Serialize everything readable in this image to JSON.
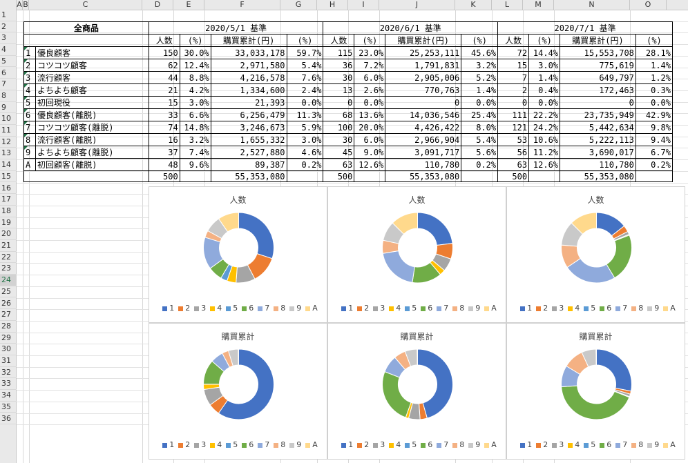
{
  "columns": [
    "A",
    "B",
    "C",
    "D",
    "E",
    "F",
    "G",
    "H",
    "I",
    "J",
    "K",
    "L",
    "M",
    "N",
    "O"
  ],
  "rows": [
    "1",
    "2",
    "3",
    "4",
    "5",
    "6",
    "7",
    "8",
    "9",
    "10",
    "11",
    "12",
    "13",
    "14",
    "15",
    "16",
    "17",
    "18",
    "19",
    "20",
    "21",
    "22",
    "23",
    "24",
    "25",
    "26",
    "27",
    "28",
    "29",
    "30",
    "31",
    "32",
    "33",
    "34",
    "35",
    "36"
  ],
  "table": {
    "corner_label": "全商品",
    "periods": [
      "2020/5/1 基準",
      "2020/6/1 基準",
      "2020/7/1 基準"
    ],
    "subheaders": [
      "人数",
      "(%)",
      "購買累計(円)",
      "(%)"
    ],
    "segments": [
      {
        "code": "1",
        "name": "優良顧客",
        "p": [
          [
            "150",
            "30.0%",
            "33,033,178",
            "59.7%"
          ],
          [
            "115",
            "23.0%",
            "25,253,111",
            "45.6%"
          ],
          [
            "72",
            "14.4%",
            "15,553,708",
            "28.1%"
          ]
        ]
      },
      {
        "code": "2",
        "name": "コツコツ顧客",
        "p": [
          [
            "62",
            "12.4%",
            "2,971,580",
            "5.4%"
          ],
          [
            "36",
            "7.2%",
            "1,791,831",
            "3.2%"
          ],
          [
            "15",
            "3.0%",
            "775,619",
            "1.4%"
          ]
        ]
      },
      {
        "code": "3",
        "name": "流行顧客",
        "p": [
          [
            "44",
            "8.8%",
            "4,216,578",
            "7.6%"
          ],
          [
            "30",
            "6.0%",
            "2,905,006",
            "5.2%"
          ],
          [
            "7",
            "1.4%",
            "649,797",
            "1.2%"
          ]
        ]
      },
      {
        "code": "4",
        "name": "よちよち顧客",
        "p": [
          [
            "21",
            "4.2%",
            "1,334,600",
            "2.4%"
          ],
          [
            "13",
            "2.6%",
            "770,763",
            "1.4%"
          ],
          [
            "2",
            "0.4%",
            "172,463",
            "0.3%"
          ]
        ]
      },
      {
        "code": "5",
        "name": "初回現役",
        "p": [
          [
            "15",
            "3.0%",
            "21,393",
            "0.0%"
          ],
          [
            "0",
            "0.0%",
            "0",
            "0.0%"
          ],
          [
            "0",
            "0.0%",
            "0",
            "0.0%"
          ]
        ]
      },
      {
        "code": "6",
        "name": "優良顧客(離脱)",
        "p": [
          [
            "33",
            "6.6%",
            "6,256,479",
            "11.3%"
          ],
          [
            "68",
            "13.6%",
            "14,036,546",
            "25.4%"
          ],
          [
            "111",
            "22.2%",
            "23,735,949",
            "42.9%"
          ]
        ]
      },
      {
        "code": "7",
        "name": "コツコツ顧客(離脱)",
        "p": [
          [
            "74",
            "14.8%",
            "3,246,673",
            "5.9%"
          ],
          [
            "100",
            "20.0%",
            "4,426,422",
            "8.0%"
          ],
          [
            "121",
            "24.2%",
            "5,442,634",
            "9.8%"
          ]
        ]
      },
      {
        "code": "8",
        "name": "流行顧客(離脱)",
        "p": [
          [
            "16",
            "3.2%",
            "1,655,332",
            "3.0%"
          ],
          [
            "30",
            "6.0%",
            "2,966,904",
            "5.4%"
          ],
          [
            "53",
            "10.6%",
            "5,222,113",
            "9.4%"
          ]
        ]
      },
      {
        "code": "9",
        "name": "よちよち顧客(離脱)",
        "p": [
          [
            "37",
            "7.4%",
            "2,527,880",
            "4.6%"
          ],
          [
            "45",
            "9.0%",
            "3,091,717",
            "5.6%"
          ],
          [
            "56",
            "11.2%",
            "3,690,017",
            "6.7%"
          ]
        ]
      },
      {
        "code": "A",
        "name": "初回顧客(離脱)",
        "p": [
          [
            "48",
            "9.6%",
            "89,387",
            "0.2%"
          ],
          [
            "63",
            "12.6%",
            "110,780",
            "0.2%"
          ],
          [
            "63",
            "12.6%",
            "110,780",
            "0.2%"
          ]
        ]
      }
    ],
    "totals": [
      [
        "500",
        "55,353,080"
      ],
      [
        "500",
        "55,353,080"
      ],
      [
        "500",
        "55,353,080"
      ]
    ]
  },
  "colors": [
    "#4472c4",
    "#ed7d31",
    "#a5a5a5",
    "#ffc000",
    "#5b9bd5",
    "#70ad47",
    "#8faadc",
    "#f4b183",
    "#c9c9c9",
    "#ffd98c"
  ],
  "legend_labels": [
    "1",
    "2",
    "3",
    "4",
    "5",
    "6",
    "7",
    "8",
    "9",
    "A"
  ],
  "chart_data": [
    {
      "type": "pie",
      "title": "人数",
      "categories": [
        "1",
        "2",
        "3",
        "4",
        "5",
        "6",
        "7",
        "8",
        "9",
        "A"
      ],
      "values": [
        150,
        62,
        44,
        21,
        15,
        33,
        74,
        16,
        37,
        48
      ]
    },
    {
      "type": "pie",
      "title": "人数",
      "categories": [
        "1",
        "2",
        "3",
        "4",
        "5",
        "6",
        "7",
        "8",
        "9",
        "A"
      ],
      "values": [
        115,
        36,
        30,
        13,
        0,
        68,
        100,
        30,
        45,
        63
      ]
    },
    {
      "type": "pie",
      "title": "人数",
      "categories": [
        "1",
        "2",
        "3",
        "4",
        "5",
        "6",
        "7",
        "8",
        "9",
        "A"
      ],
      "values": [
        72,
        15,
        7,
        2,
        0,
        111,
        121,
        53,
        56,
        63
      ]
    },
    {
      "type": "pie",
      "title": "購買累計",
      "categories": [
        "1",
        "2",
        "3",
        "4",
        "5",
        "6",
        "7",
        "8",
        "9",
        "A"
      ],
      "values": [
        33033178,
        2971580,
        4216578,
        1334600,
        21393,
        6256479,
        3246673,
        1655332,
        2527880,
        89387
      ]
    },
    {
      "type": "pie",
      "title": "購買累計",
      "categories": [
        "1",
        "2",
        "3",
        "4",
        "5",
        "6",
        "7",
        "8",
        "9",
        "A"
      ],
      "values": [
        25253111,
        1791831,
        2905006,
        770763,
        0,
        14036546,
        4426422,
        2966904,
        3091717,
        110780
      ]
    },
    {
      "type": "pie",
      "title": "購買累計",
      "categories": [
        "1",
        "2",
        "3",
        "4",
        "5",
        "6",
        "7",
        "8",
        "9",
        "A"
      ],
      "values": [
        15553708,
        775619,
        649797,
        172463,
        0,
        23735949,
        5442634,
        5222113,
        3690017,
        110780
      ]
    }
  ]
}
